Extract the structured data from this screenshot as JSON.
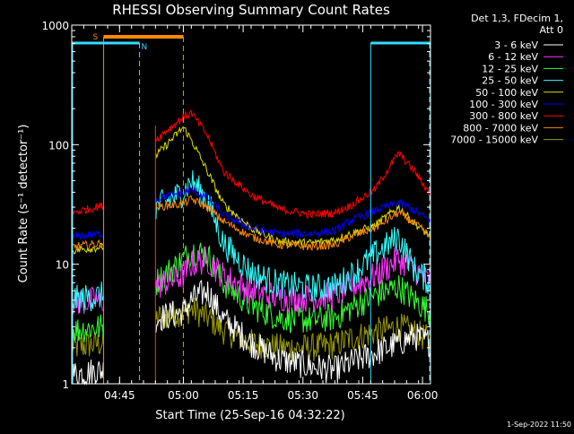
{
  "chart_data": {
    "type": "line",
    "title": "RHESSI Observing Summary Count Rates",
    "xlabel": "Start Time (25-Sep-16 04:32:22)",
    "ylabel": "Count Rate (s⁻¹ detector⁻¹)",
    "yscale": "log",
    "ylim": [
      1,
      1000
    ],
    "xlim_min": [
      0,
      90
    ],
    "x_ticks": [
      {
        "t": 12,
        "label": "04:45"
      },
      {
        "t": 28,
        "label": "05:00"
      },
      {
        "t": 43,
        "label": "05:15"
      },
      {
        "t": 58,
        "label": "05:30"
      },
      {
        "t": 73,
        "label": "05:45"
      },
      {
        "t": 88,
        "label": "06:00"
      }
    ],
    "y_ticks": [
      {
        "v": 1,
        "label": "1"
      },
      {
        "v": 10,
        "label": "10"
      },
      {
        "v": 100,
        "label": "100"
      },
      {
        "v": 1000,
        "label": "1000"
      }
    ],
    "legend_header": [
      "Det 1,3, FDecim 1,",
      "Att 0"
    ],
    "series": [
      {
        "name": "3 - 6 keV",
        "color": "#ffffff",
        "x": [
          0,
          8,
          8.01,
          21,
          21.01,
          28,
          30,
          34,
          38,
          45,
          52,
          60,
          66,
          70,
          76,
          82,
          86,
          90
        ],
        "y": [
          1.2,
          1.3,
          0,
          0,
          3.5,
          4,
          5,
          6,
          3.5,
          2.2,
          1.6,
          1.4,
          1.3,
          1.5,
          1.8,
          2.2,
          2.5,
          2.2
        ]
      },
      {
        "name": "6 - 12 keV",
        "color": "#ff33ff",
        "x": [
          0,
          8,
          8.01,
          21,
          21.01,
          28,
          30,
          34,
          38,
          45,
          52,
          60,
          66,
          70,
          76,
          82,
          86,
          90
        ],
        "y": [
          4.8,
          5,
          0,
          0,
          6.5,
          8,
          10,
          11,
          8,
          6,
          5.3,
          5.2,
          5.5,
          6.5,
          8,
          11,
          9,
          7
        ]
      },
      {
        "name": "12 - 25 keV",
        "color": "#33ff33",
        "x": [
          0,
          8,
          8.01,
          21,
          21.01,
          28,
          30,
          34,
          38,
          45,
          52,
          60,
          66,
          70,
          76,
          82,
          86,
          90
        ],
        "y": [
          2.8,
          3,
          0,
          0,
          7,
          11,
          13,
          12,
          7,
          4.5,
          3.6,
          3.4,
          3.6,
          4.3,
          5.5,
          6.5,
          5,
          4
        ]
      },
      {
        "name": "25 - 50 keV",
        "color": "#33ffff",
        "x": [
          0,
          8,
          8.01,
          21,
          21.01,
          28,
          30,
          34,
          38,
          45,
          52,
          60,
          66,
          70,
          76,
          82,
          86,
          90
        ],
        "y": [
          5,
          5.5,
          0,
          0,
          30,
          40,
          50,
          35,
          15,
          8.5,
          6.8,
          6.3,
          6.5,
          8,
          12,
          17,
          9,
          7
        ]
      },
      {
        "name": "50 - 100 keV",
        "color": "#dddd00",
        "x": [
          0,
          8,
          8.01,
          21,
          21.01,
          28,
          30,
          34,
          38,
          45,
          52,
          60,
          66,
          70,
          76,
          82,
          86,
          90
        ],
        "y": [
          13,
          14,
          0,
          0,
          80,
          140,
          110,
          60,
          32,
          20,
          15.5,
          15,
          16,
          18,
          21,
          30,
          22,
          17
        ]
      },
      {
        "name": "100 - 300 keV",
        "color": "#0000ff",
        "x": [
          0,
          8,
          8.01,
          21,
          21.01,
          28,
          30,
          34,
          38,
          45,
          52,
          60,
          66,
          70,
          76,
          82,
          86,
          90
        ],
        "y": [
          17,
          18,
          0,
          0,
          35,
          40,
          42,
          36,
          26,
          20,
          18,
          18,
          19,
          23,
          28,
          33,
          28,
          23
        ]
      },
      {
        "name": "300 - 800 keV",
        "color": "#ff0000",
        "x": [
          0,
          8,
          8.01,
          21,
          21.01,
          28,
          30,
          34,
          38,
          45,
          52,
          60,
          66,
          70,
          76,
          82,
          86,
          90
        ],
        "y": [
          27,
          31,
          0,
          0,
          110,
          170,
          185,
          120,
          60,
          38,
          29,
          26,
          27,
          31,
          42,
          85,
          60,
          38
        ]
      },
      {
        "name": "800 - 7000 keV",
        "color": "#ff8800",
        "x": [
          0,
          8,
          8.01,
          21,
          21.01,
          28,
          30,
          34,
          38,
          45,
          52,
          60,
          66,
          70,
          76,
          82,
          86,
          90
        ],
        "y": [
          14,
          15,
          0,
          0,
          30,
          32,
          35,
          30,
          23,
          17,
          14.5,
          14,
          14.5,
          17,
          20,
          27,
          22,
          17
        ]
      },
      {
        "name": "7000 - 15000 keV",
        "color": "#999900",
        "x": [
          0,
          8,
          8.01,
          21,
          21.01,
          28,
          30,
          34,
          38,
          45,
          52,
          60,
          66,
          70,
          76,
          82,
          86,
          90
        ],
        "y": [
          2,
          2.2,
          0,
          0,
          3.5,
          4,
          4.2,
          3.6,
          2.8,
          2.2,
          2,
          2,
          2.1,
          2.4,
          2.7,
          3,
          2.7,
          2.3
        ]
      }
    ],
    "annotations": {
      "saa_label": "S",
      "night_label": "N",
      "saa_bar_min": [
        8,
        28
      ],
      "night_bars_min": [
        [
          0,
          17
        ],
        [
          75,
          90
        ]
      ],
      "saa_dashed_min": [
        28
      ],
      "night_dashed_min": [
        17,
        90
      ],
      "data_gap_min": [
        21
      ]
    },
    "timestamp": "1-Sep-2022 11:50"
  }
}
